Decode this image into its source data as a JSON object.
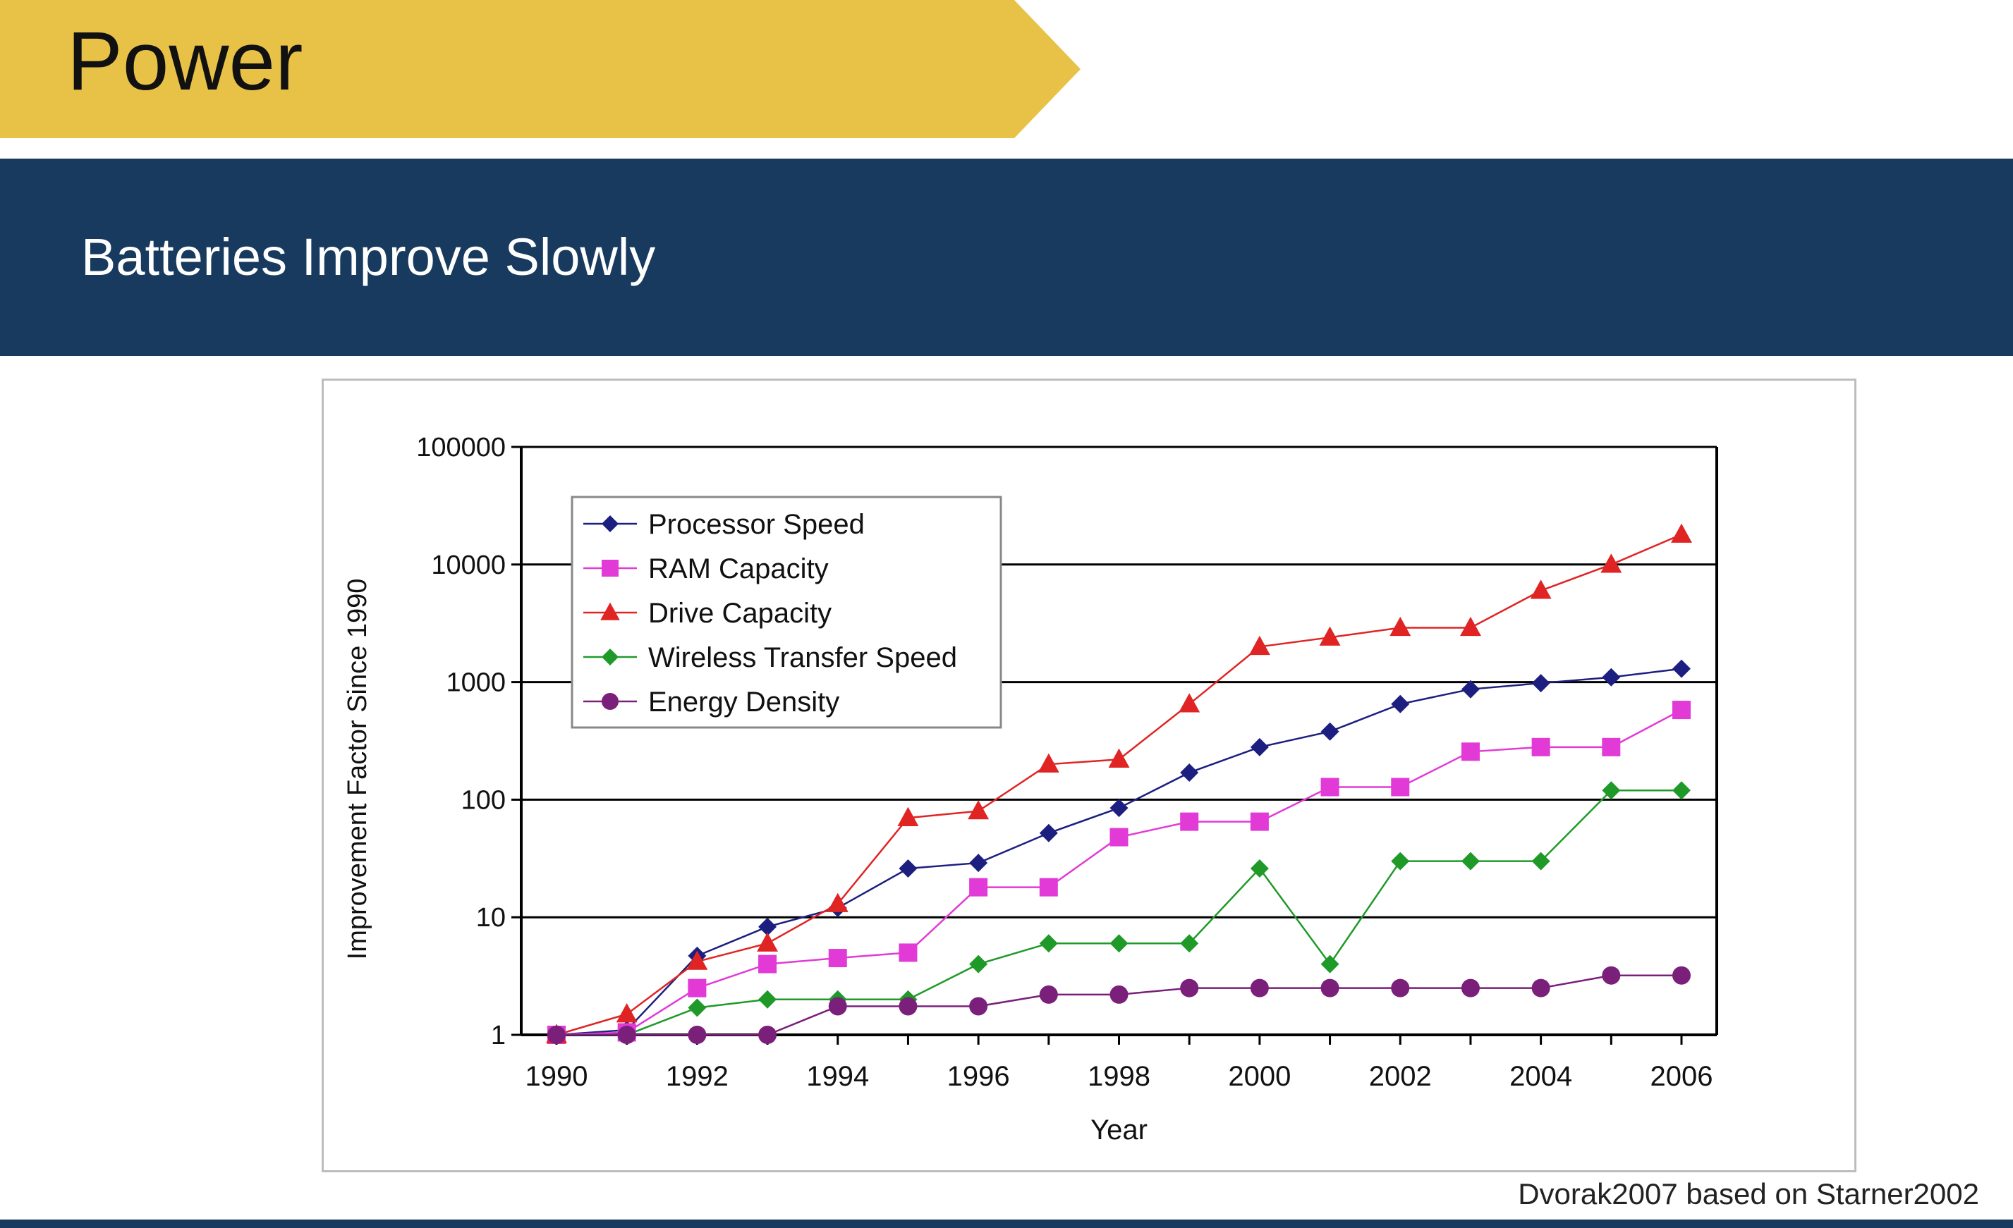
{
  "header": {
    "title": "Power",
    "banner_color": "#e8c147"
  },
  "subheader": {
    "title": "Batteries Improve Slowly",
    "band_color": "#183a5f"
  },
  "credit": "Dvorak2007 based on Starner2002",
  "chart_data": {
    "type": "line",
    "title": "",
    "xlabel": "Year",
    "ylabel": "Improvement Factor Since 1990",
    "x": [
      1990,
      1991,
      1992,
      1993,
      1994,
      1995,
      1996,
      1997,
      1998,
      1999,
      2000,
      2001,
      2002,
      2003,
      2004,
      2005,
      2006
    ],
    "x_ticks": [
      "1990",
      "1992",
      "1994",
      "1996",
      "1998",
      "2000",
      "2002",
      "2004",
      "2006"
    ],
    "y_ticks": [
      "1",
      "10",
      "100",
      "1000",
      "10000",
      "100000"
    ],
    "y_scale": "log",
    "ylim": [
      1,
      100000
    ],
    "xlim": [
      1990,
      2006
    ],
    "grid": "horizontal",
    "legend_position": "top-left",
    "series": [
      {
        "name": "Processor Speed",
        "color": "#1c1f80",
        "marker": "diamond",
        "values": [
          1,
          1.1,
          4.7,
          8.3,
          12,
          26,
          29,
          52,
          85,
          170,
          280,
          380,
          650,
          870,
          980,
          1100,
          1300
        ]
      },
      {
        "name": "RAM Capacity",
        "color": "#e23ad6",
        "marker": "square",
        "values": [
          1,
          1.05,
          2.5,
          4,
          4.5,
          5,
          18,
          18,
          48,
          65,
          65,
          128,
          128,
          256,
          280,
          280,
          580
        ]
      },
      {
        "name": "Drive Capacity",
        "color": "#e02424",
        "marker": "triangle",
        "values": [
          1,
          1.5,
          4.2,
          6,
          13,
          70,
          80,
          200,
          220,
          650,
          2000,
          2400,
          2900,
          2900,
          6000,
          10000,
          18000
        ]
      },
      {
        "name": "Wireless Transfer Speed",
        "color": "#1f9a28",
        "marker": "diamond",
        "values": [
          1,
          1,
          1.7,
          2,
          2,
          2,
          4,
          6,
          6,
          6,
          26,
          4,
          30,
          30,
          30,
          120,
          120
        ]
      },
      {
        "name": "Energy Density",
        "color": "#7a1f7a",
        "marker": "circle",
        "values": [
          1,
          1,
          1,
          1,
          1.75,
          1.75,
          1.75,
          2.2,
          2.2,
          2.5,
          2.5,
          2.5,
          2.5,
          2.5,
          2.5,
          3.2,
          3.2
        ]
      }
    ]
  }
}
